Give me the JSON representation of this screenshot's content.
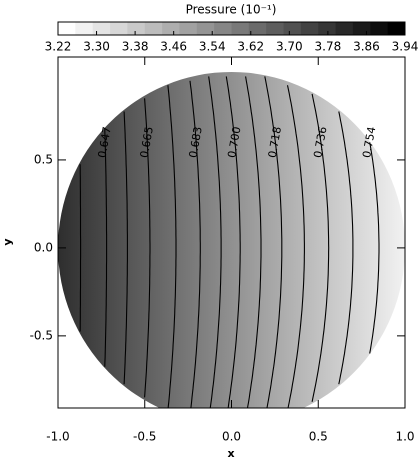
{
  "chart_data": {
    "type": "contour",
    "title": "Pressure (10⁻¹)",
    "x_label": "x",
    "y_label": "y",
    "xlim": [
      -1,
      1
    ],
    "ylim": [
      -0.91,
      1.085
    ],
    "xticks": [
      {
        "value": -1,
        "label": "-1.0"
      },
      {
        "value": -0.5,
        "label": "-0.5"
      },
      {
        "value": 0,
        "label": "0.0"
      },
      {
        "value": 0.5,
        "label": "0.5"
      },
      {
        "value": 1,
        "label": "1.0"
      }
    ],
    "yticks": [
      {
        "value": -0.5,
        "label": "-0.5"
      },
      {
        "value": 0,
        "label": "0.0"
      },
      {
        "value": 0.5,
        "label": "0.5"
      }
    ],
    "clim": [
      3.22,
      3.94
    ],
    "cticks": [
      3.22,
      {
        "value": 3.3,
        "label": "3.30"
      },
      3.38,
      3.46,
      3.54,
      3.62,
      {
        "value": 3.7,
        "label": "3.70"
      },
      3.78,
      3.86,
      3.94
    ],
    "contours": [
      {
        "level": 0.638,
        "x": -0.87
      },
      {
        "level": 0.647,
        "label": "0.647",
        "x": -0.72
      },
      {
        "level": 0.656,
        "x": -0.6
      },
      {
        "level": 0.665,
        "label": "0.665",
        "x": -0.47
      },
      {
        "level": 0.674,
        "x": -0.32
      },
      {
        "level": 0.683,
        "label": "0.683",
        "x": -0.18
      },
      {
        "level": 0.691,
        "x": -0.06
      },
      {
        "level": 0.7,
        "label": "0.700",
        "x": 0.05
      },
      {
        "level": 0.709,
        "x": 0.17
      },
      {
        "level": 0.718,
        "label": "0.718",
        "x": 0.29
      },
      {
        "level": 0.727,
        "x": 0.42
      },
      {
        "level": 0.736,
        "label": "0.736",
        "x": 0.56
      },
      {
        "level": 0.745,
        "x": 0.7
      },
      {
        "level": 0.754,
        "label": "0.754",
        "x": 0.85
      }
    ]
  }
}
